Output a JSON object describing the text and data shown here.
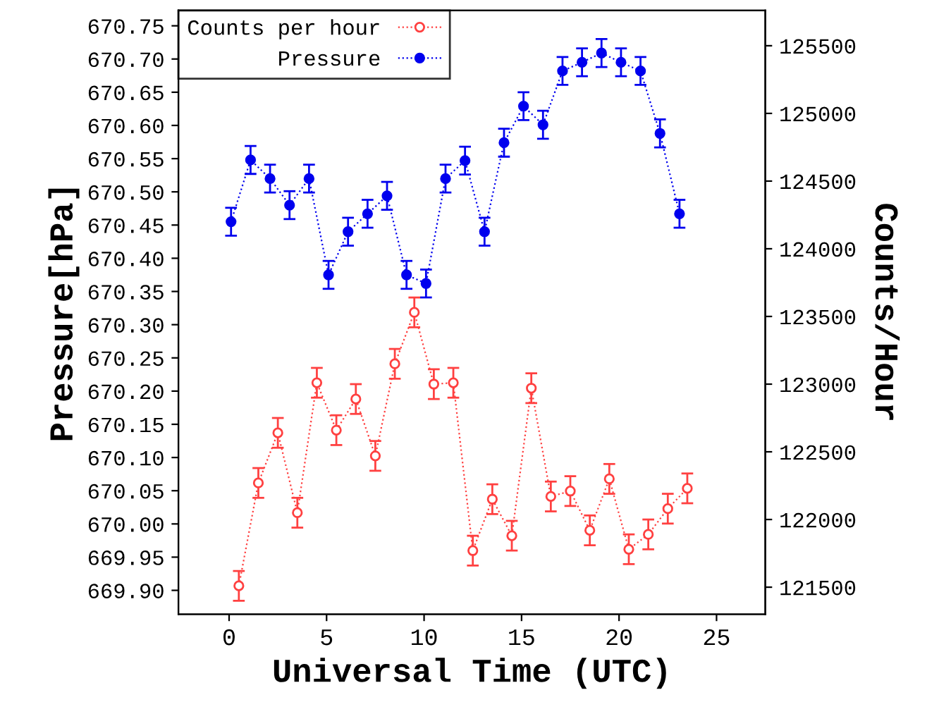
{
  "chart_data": {
    "type": "line",
    "xlabel": "Universal Time (UTC)",
    "ylabel": "Pressure[hPa]",
    "y2label": "Counts/Hour",
    "xlim": [
      -2.6,
      27.5
    ],
    "xticks": [
      0,
      5,
      10,
      15,
      20,
      25
    ],
    "ylim": [
      669.864,
      670.773
    ],
    "yticks": [
      {
        "value": 669.9,
        "label": "669.90"
      },
      {
        "value": 669.95,
        "label": "669.95"
      },
      {
        "value": 670.0,
        "label": "670.00"
      },
      {
        "value": 670.05,
        "label": "670.05"
      },
      {
        "value": 670.1,
        "label": "670.10"
      },
      {
        "value": 670.15,
        "label": "670.15"
      },
      {
        "value": 670.2,
        "label": "670.20"
      },
      {
        "value": 670.25,
        "label": "670.25"
      },
      {
        "value": 670.3,
        "label": "670.30"
      },
      {
        "value": 670.35,
        "label": "670.35"
      },
      {
        "value": 670.4,
        "label": "670.40"
      },
      {
        "value": 670.45,
        "label": "670.45"
      },
      {
        "value": 670.5,
        "label": "670.50"
      },
      {
        "value": 670.55,
        "label": "670.55"
      },
      {
        "value": 670.6,
        "label": "670.60"
      },
      {
        "value": 670.65,
        "label": "670.65"
      },
      {
        "value": 670.7,
        "label": "670.70"
      },
      {
        "value": 670.75,
        "label": "670.75"
      }
    ],
    "y2lim": [
      121300,
      125760
    ],
    "y2ticks": [
      121500,
      122000,
      122500,
      123000,
      123500,
      124000,
      124500,
      125000,
      125500
    ],
    "grid": false,
    "legend": "top left",
    "line_style": "dotted",
    "series": [
      {
        "name": "Counts per hour",
        "axis": "y2",
        "color": "#ff4040",
        "marker": "circle",
        "x": [
          0.5,
          1.5,
          2.5,
          3.5,
          4.5,
          5.5,
          6.5,
          7.5,
          8.5,
          9.5,
          10.5,
          11.5,
          12.5,
          13.5,
          14.5,
          15.5,
          16.5,
          17.5,
          18.5,
          19.5,
          20.5,
          21.5,
          22.5,
          23.5
        ],
        "values": [
          121510,
          122270,
          122640,
          122050,
          123010,
          122660,
          122890,
          122470,
          123150,
          123530,
          123000,
          123010,
          121770,
          122150,
          121880,
          122970,
          122170,
          122210,
          121920,
          122300,
          121780,
          121890,
          122080,
          122230
        ],
        "errors": [
          110,
          110,
          110,
          110,
          110,
          110,
          110,
          110,
          110,
          110,
          110,
          110,
          110,
          110,
          110,
          110,
          110,
          110,
          110,
          110,
          110,
          110,
          110,
          110
        ]
      },
      {
        "name": "Pressure",
        "axis": "y",
        "color": "#0000ee",
        "marker": "filled circle",
        "x": [
          0.1,
          1.1,
          2.1,
          3.1,
          4.1,
          5.1,
          6.1,
          7.1,
          8.1,
          9.1,
          10.1,
          11.1,
          12.1,
          13.1,
          14.1,
          15.1,
          16.1,
          17.1,
          18.1,
          19.1,
          20.1,
          21.1,
          22.1,
          23.1
        ],
        "values": [
          670.455,
          670.548,
          670.52,
          670.48,
          670.52,
          670.375,
          670.44,
          670.467,
          670.494,
          670.375,
          670.362,
          670.52,
          670.547,
          670.44,
          670.574,
          670.629,
          670.601,
          670.682,
          670.695,
          670.709,
          670.695,
          670.682,
          670.588,
          670.467
        ],
        "errors": [
          0.021,
          0.021,
          0.021,
          0.021,
          0.021,
          0.021,
          0.021,
          0.021,
          0.021,
          0.021,
          0.021,
          0.021,
          0.021,
          0.021,
          0.021,
          0.021,
          0.021,
          0.021,
          0.021,
          0.021,
          0.021,
          0.021,
          0.021,
          0.021
        ]
      }
    ]
  }
}
